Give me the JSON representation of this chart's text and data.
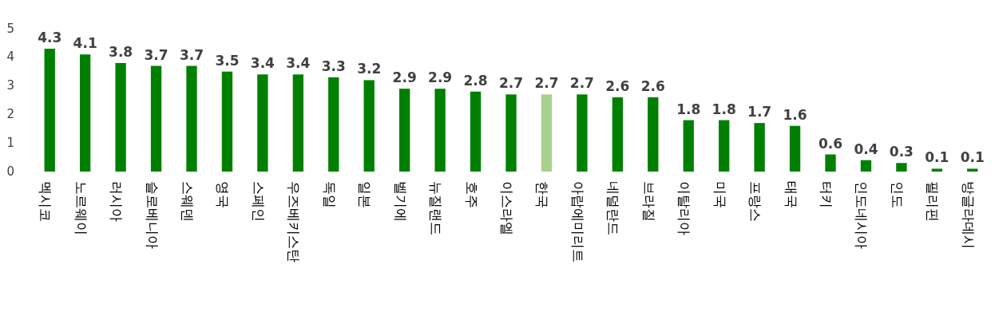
{
  "chart_data": {
    "type": "bar",
    "categories": [
      "멕시코",
      "노르웨이",
      "러시아",
      "슬로베니아",
      "스웨덴",
      "영국",
      "스페인",
      "우즈베키스탄",
      "독일",
      "일본",
      "벨기에",
      "뉴질랜드",
      "호주",
      "이스라엘",
      "한국",
      "아랍에미리트",
      "네덜란드",
      "브라질",
      "이탈리아",
      "미국",
      "프랑스",
      "태국",
      "터키",
      "인도네시아",
      "인도",
      "필리핀",
      "방글라데시"
    ],
    "values": [
      4.3,
      4.1,
      3.8,
      3.7,
      3.7,
      3.5,
      3.4,
      3.4,
      3.3,
      3.2,
      2.9,
      2.9,
      2.8,
      2.7,
      2.7,
      2.7,
      2.6,
      2.6,
      1.8,
      1.8,
      1.7,
      1.6,
      0.6,
      0.4,
      0.3,
      0.1,
      0.1
    ],
    "colors": [
      "#008000",
      "#008000",
      "#008000",
      "#008000",
      "#008000",
      "#008000",
      "#008000",
      "#008000",
      "#008000",
      "#008000",
      "#008000",
      "#008000",
      "#008000",
      "#008000",
      "#a9d18e",
      "#008000",
      "#008000",
      "#008000",
      "#008000",
      "#008000",
      "#008000",
      "#008000",
      "#008000",
      "#008000",
      "#008000",
      "#008000",
      "#008000"
    ],
    "ylim": [
      0,
      5
    ],
    "yticks": [
      0,
      1,
      2,
      3,
      4,
      5
    ],
    "data_labels": true
  }
}
